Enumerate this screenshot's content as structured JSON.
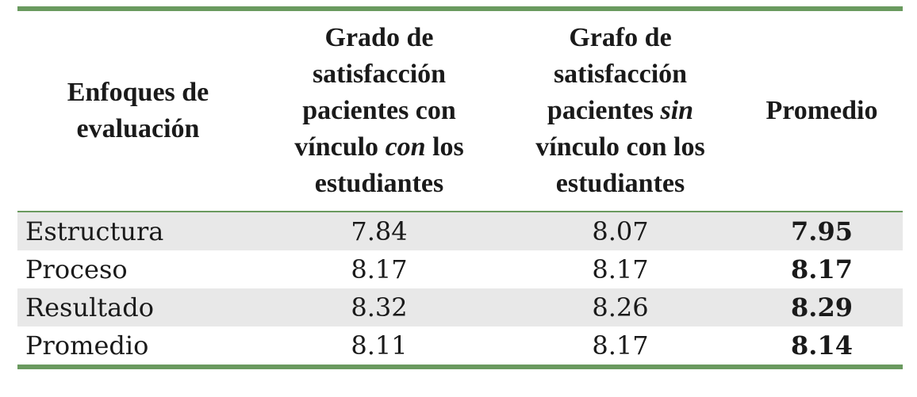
{
  "table": {
    "headers": {
      "col1_line1": "Enfoques de",
      "col1_line2": "evaluación",
      "col2_line1": "Grado de",
      "col2_line2": "satisfacción",
      "col2_line3": "pacientes con",
      "col2_line4a": "vínculo ",
      "col2_line4b": "con",
      "col2_line4c": " los",
      "col2_line5": "estudiantes",
      "col3_line1": "Grafo de",
      "col3_line2": "satisfacción",
      "col3_line3a": "pacientes ",
      "col3_line3b": "sin",
      "col3_line4": "vínculo con los",
      "col3_line5": "estudiantes",
      "col4": "Promedio"
    },
    "rows": [
      {
        "label": "Estructura",
        "v1": "7.84",
        "v2": "8.07",
        "avg": "7.95"
      },
      {
        "label": "Proceso",
        "v1": "8.17",
        "v2": "8.17",
        "avg": "8.17"
      },
      {
        "label": "Resultado",
        "v1": "8.32",
        "v2": "8.26",
        "avg": "8.29"
      },
      {
        "label": "Promedio",
        "v1": "8.11",
        "v2": "8.17",
        "avg": "8.14"
      }
    ],
    "colors": {
      "rule": "#6a9a5f",
      "shade": "#e8e8e8"
    }
  }
}
